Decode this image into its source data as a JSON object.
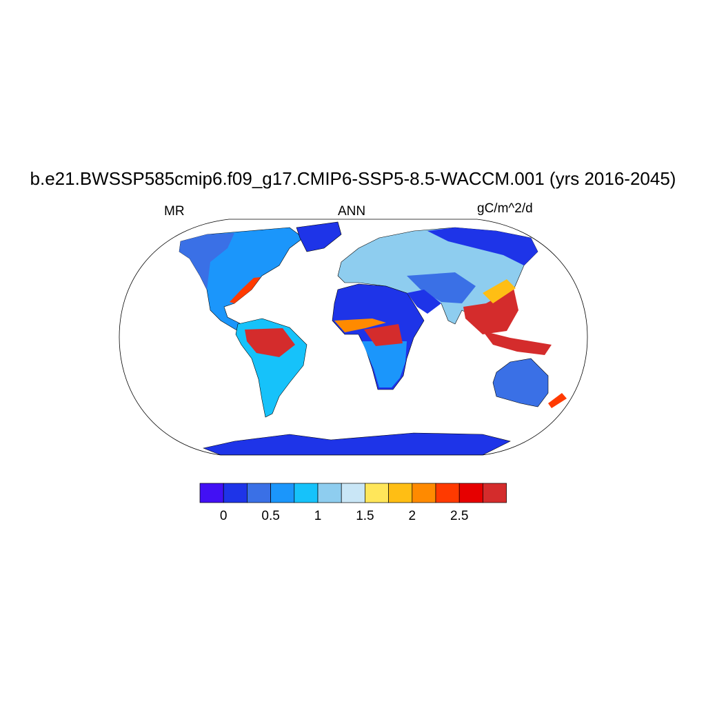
{
  "title": "b.e21.BWSSP585cmip6.f09_g17.CMIP6-SSP5-8.5-WACCM.001 (yrs 2016-2045)",
  "left_label": "MR",
  "center_label": "ANN",
  "right_label": "gC/m^2/d",
  "map": {
    "projection": "robinson",
    "field": "MR",
    "coastlines": true
  },
  "colorbar": {
    "levels": [
      0,
      0.25,
      0.5,
      0.75,
      1,
      1.25,
      1.5,
      1.75,
      2,
      2.25,
      2.5,
      2.75
    ],
    "tick_labels": [
      "0",
      "0.5",
      "1",
      "1.5",
      "2",
      "2.5"
    ],
    "tick_values": [
      0,
      0.5,
      1,
      1.5,
      2,
      2.5
    ],
    "colors": [
      "#4210f4",
      "#1e34e8",
      "#3a70e6",
      "#1b96fb",
      "#16c2fa",
      "#8ecdef",
      "#c9e6f6",
      "#ffe65a",
      "#ffbe14",
      "#ff8a00",
      "#ff3a00",
      "#e60000",
      "#d42c2c"
    ]
  }
}
